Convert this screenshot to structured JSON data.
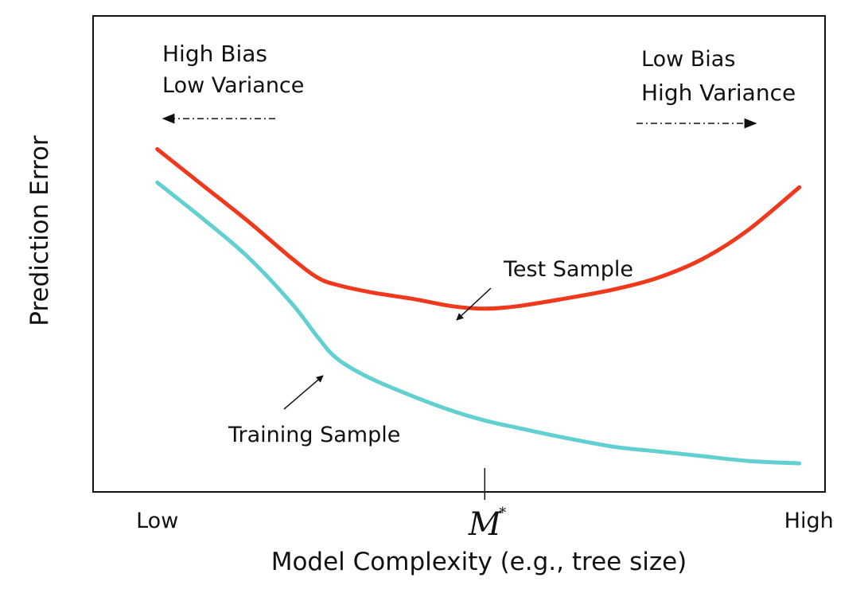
{
  "chart_data": {
    "type": "line",
    "title": "",
    "xlabel": "Model Complexity (e.g., tree size)",
    "ylabel": "Prediction Error",
    "x_ticks": [
      {
        "x": 0,
        "label": "Low"
      },
      {
        "x": 1,
        "label": "High"
      }
    ],
    "optimum": {
      "x": 0.51,
      "label": "M",
      "superscript": "*"
    },
    "xlim": [
      -0.1,
      1.04
    ],
    "ylim": [
      0.03,
      1.03
    ],
    "grid": false,
    "legend": "none",
    "series": [
      {
        "name": "Test Sample",
        "color": "#f0391c",
        "x": [
          0.0,
          0.07,
          0.14,
          0.21,
          0.25,
          0.28,
          0.33,
          0.4,
          0.46,
          0.51,
          0.56,
          0.63,
          0.71,
          0.78,
          0.85,
          0.92,
          1.0
        ],
        "y": [
          0.75,
          0.675,
          0.6,
          0.52,
          0.48,
          0.465,
          0.45,
          0.435,
          0.42,
          0.415,
          0.42,
          0.435,
          0.455,
          0.48,
          0.52,
          0.58,
          0.67
        ]
      },
      {
        "name": "Training Sample",
        "color": "#62cfd0",
        "x": [
          0.0,
          0.07,
          0.14,
          0.21,
          0.25,
          0.28,
          0.33,
          0.4,
          0.46,
          0.51,
          0.56,
          0.63,
          0.71,
          0.78,
          0.85,
          0.92,
          1.0
        ],
        "y": [
          0.68,
          0.605,
          0.525,
          0.425,
          0.355,
          0.31,
          0.27,
          0.23,
          0.2,
          0.18,
          0.165,
          0.145,
          0.125,
          0.115,
          0.105,
          0.095,
          0.09
        ]
      }
    ],
    "annotations": [
      {
        "id": "test",
        "text": "Test Sample",
        "arrow": "points to Test Sample curve"
      },
      {
        "id": "train",
        "text": "Training Sample",
        "arrow": "points to Training Sample curve"
      },
      {
        "id": "left",
        "lines": [
          "High Bias",
          "Low Variance"
        ],
        "arrow": "dash-dot arrow pointing left"
      },
      {
        "id": "right",
        "lines": [
          "Low Bias",
          "High Variance"
        ],
        "arrow": "dash-dot arrow pointing right"
      }
    ]
  }
}
